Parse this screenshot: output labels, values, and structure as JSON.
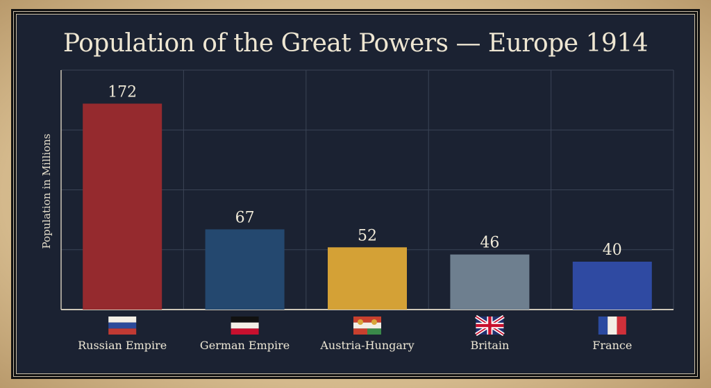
{
  "chart_data": {
    "type": "bar",
    "title": "Population of the Great Powers — Europe 1914",
    "xlabel": "",
    "ylabel": "Population in Millions",
    "ylim": [
      0,
      200
    ],
    "grid": true,
    "categories": [
      "Russian Empire",
      "German Empire",
      "Austria-Hungary",
      "Britain",
      "France"
    ],
    "values": [
      172,
      67,
      52,
      46,
      40
    ],
    "colors": [
      "#952a2e",
      "#24486f",
      "#d4a136",
      "#6e7f8f",
      "#2f4aa2"
    ],
    "icons": [
      "russian-flag-icon",
      "german-empire-flag-icon",
      "austria-hungary-flag-icon",
      "union-jack-flag-icon",
      "french-flag-icon"
    ]
  }
}
